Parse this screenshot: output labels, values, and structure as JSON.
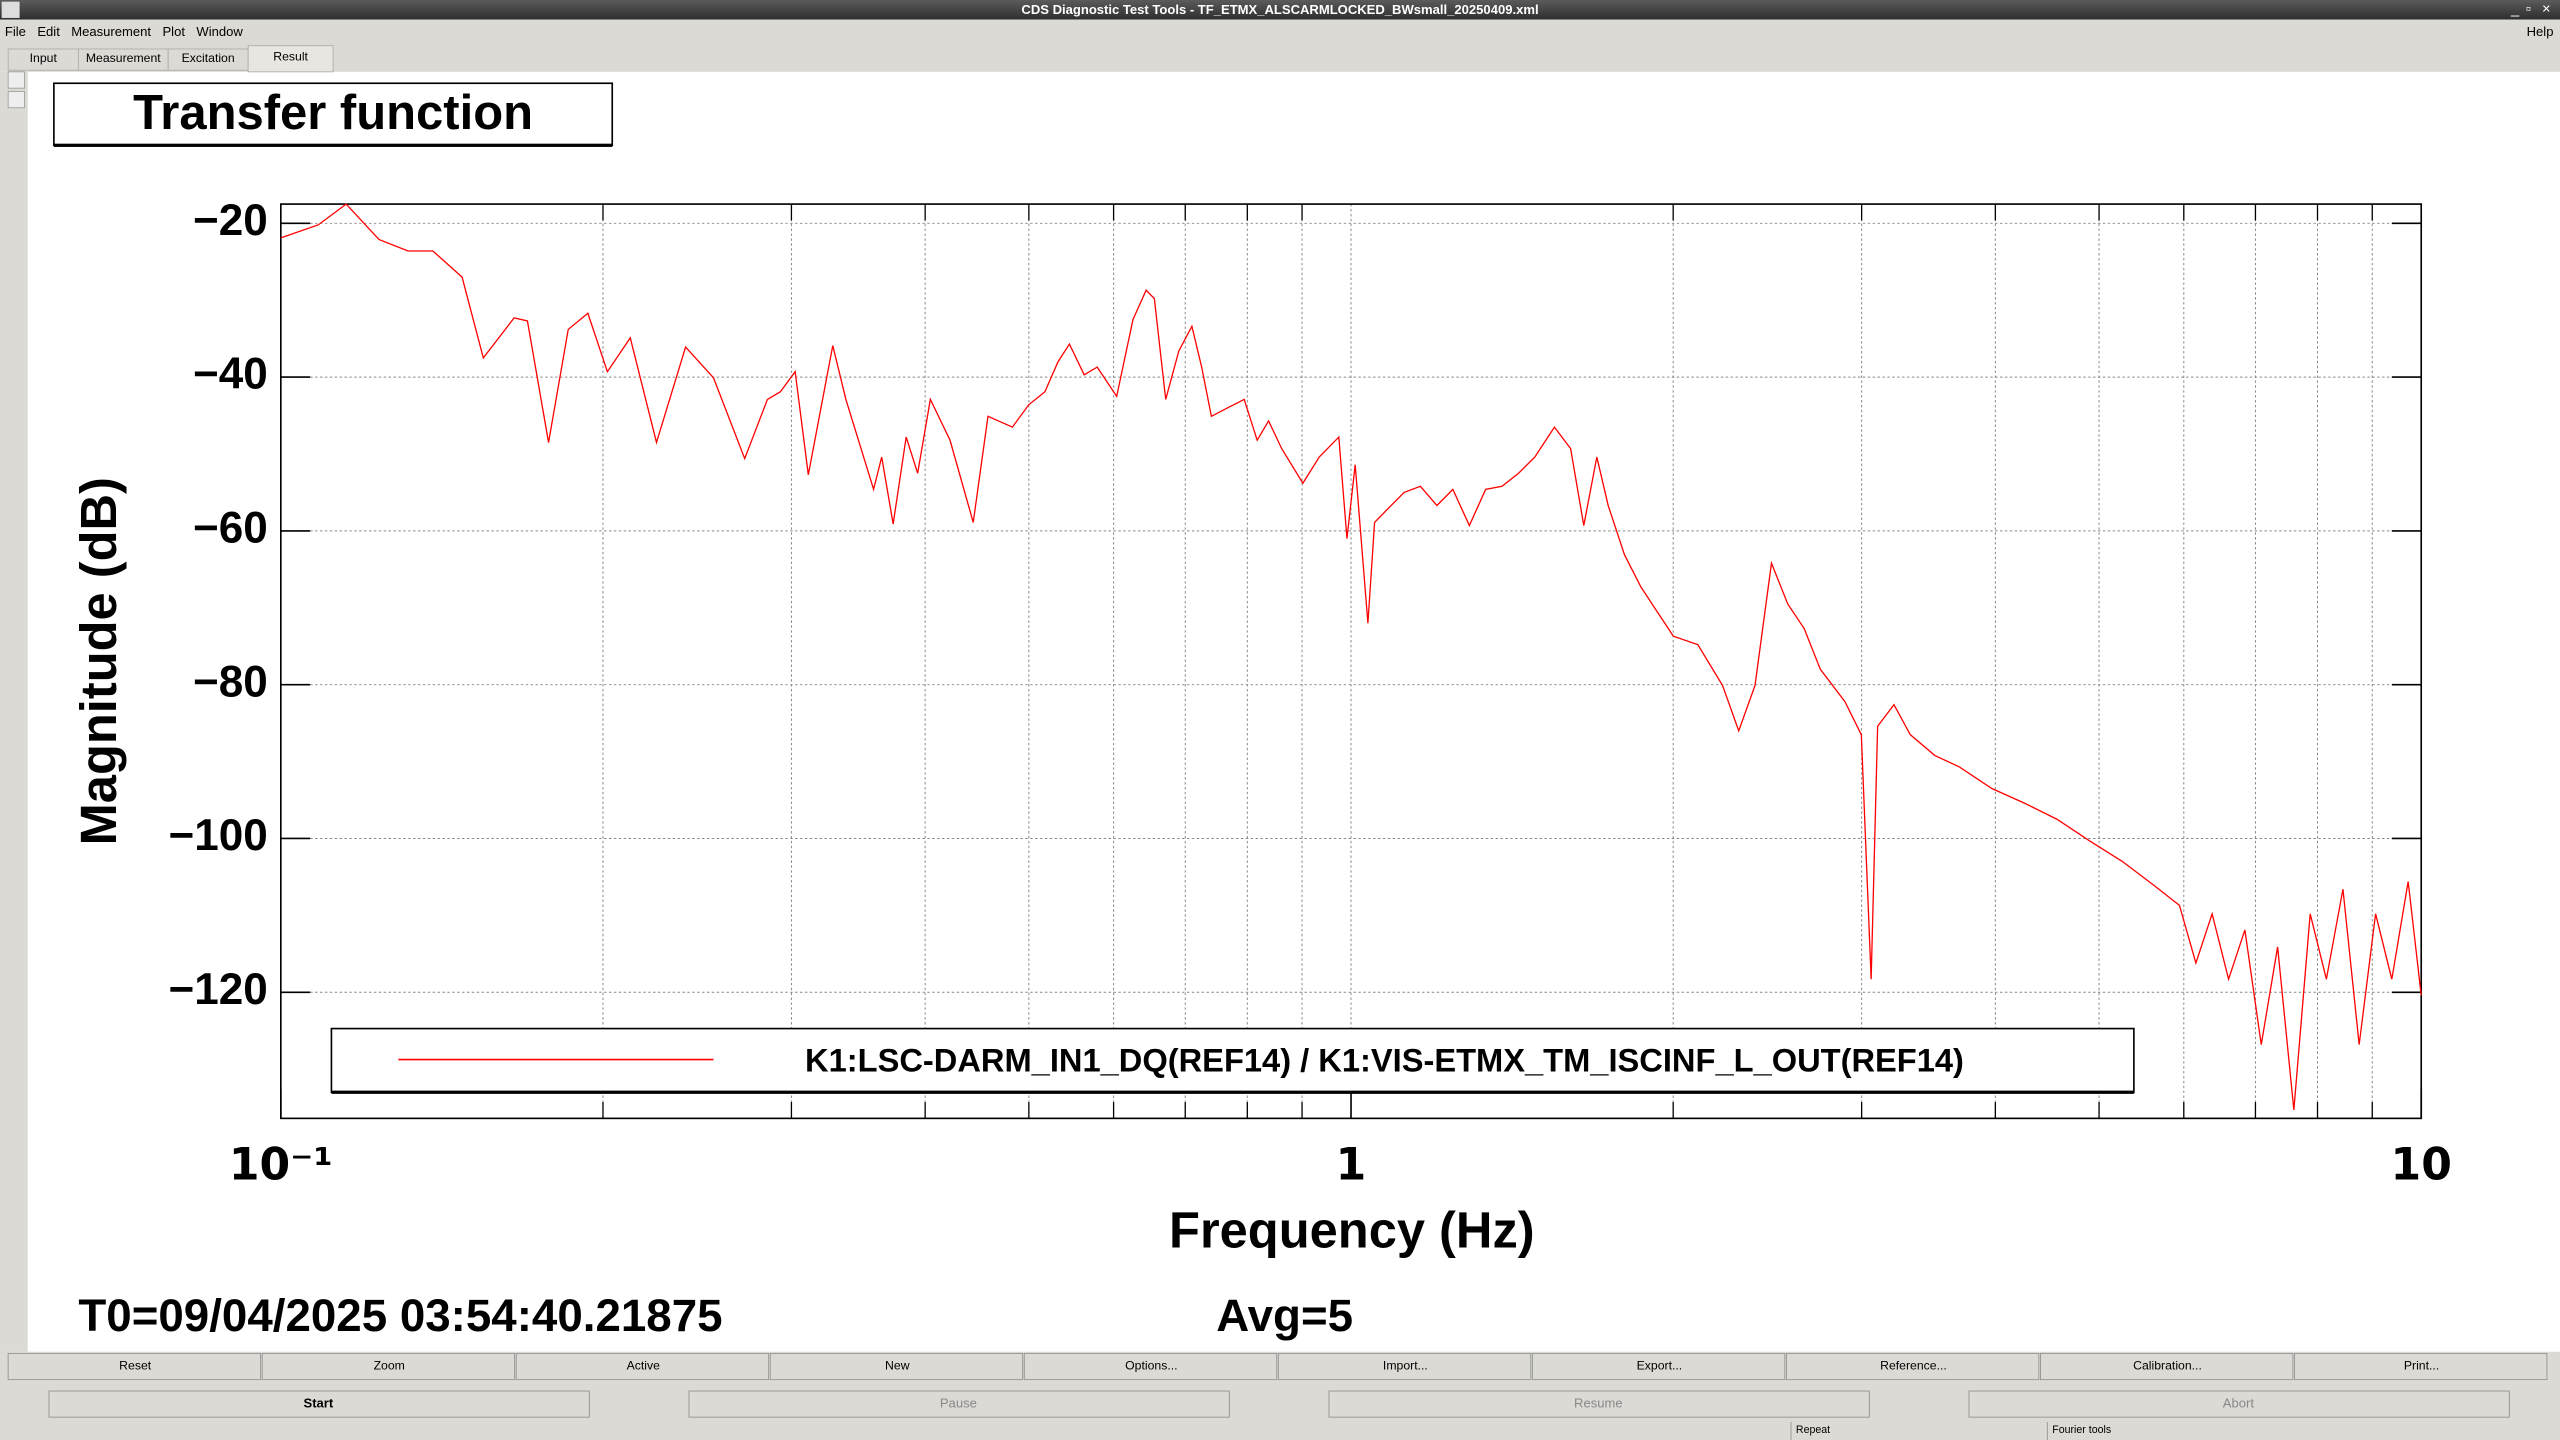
{
  "window": {
    "title": "CDS Diagnostic Test Tools - TF_ETMX_ALSCARMLOCKED_BWsmall_20250409.xml",
    "menu": [
      "File",
      "Edit",
      "Measurement",
      "Plot",
      "Window"
    ],
    "help": "Help",
    "tabs": [
      "Input",
      "Measurement",
      "Excitation",
      "Result"
    ]
  },
  "chart_data": {
    "type": "line",
    "title": "Transfer function",
    "x_label": "Frequency (Hz)",
    "y_label": "Magnitude (dB)",
    "log_x": true,
    "grid": true,
    "xlim": [
      0.1,
      10
    ],
    "xticks": [
      {
        "value": 0.1,
        "label": "10⁻¹"
      },
      1,
      10
    ],
    "xgrid": [
      0.2,
      0.3,
      0.4,
      0.5,
      0.6,
      0.7,
      0.8,
      0.9,
      2,
      3,
      4,
      5,
      6,
      7,
      8,
      9
    ],
    "ylim": [
      -136.4,
      -17.5
    ],
    "yticks": [
      {
        "value": -20,
        "label": "−20"
      },
      {
        "value": -40,
        "label": "−40"
      },
      {
        "value": -60,
        "label": "−60"
      },
      {
        "value": -80,
        "label": "−80"
      },
      {
        "value": -100,
        "label": "−100"
      },
      {
        "value": -120,
        "label": "−120"
      }
    ],
    "x": [
      0.1,
      0.1084,
      0.1151,
      0.1235,
      0.1315,
      0.1387,
      0.1477,
      0.1546,
      0.1652,
      0.17,
      0.1779,
      0.1856,
      0.1936,
      0.2019,
      0.2121,
      0.2244,
      0.2389,
      0.2537,
      0.2713,
      0.2849,
      0.293,
      0.3024,
      0.3111,
      0.3279,
      0.3373,
      0.358,
      0.3643,
      0.3734,
      0.384,
      0.3936,
      0.4045,
      0.422,
      0.4436,
      0.4579,
      0.4826,
      0.4999,
      0.5176,
      0.5324,
      0.5456,
      0.5632,
      0.5792,
      0.604,
      0.6256,
      0.6435,
      0.655,
      0.6712,
      0.6904,
      0.7101,
      0.7252,
      0.7405,
      0.767,
      0.7946,
      0.8172,
      0.8375,
      0.8614,
      0.9016,
      0.9339,
      0.9741,
      0.9913,
      1.009,
      1.037,
      1.052,
      1.09,
      1.121,
      1.161,
      1.203,
      1.245,
      1.29,
      1.336,
      1.384,
      1.434,
      1.485,
      1.549,
      1.604,
      1.65,
      1.697,
      1.739,
      1.801,
      1.866,
      1.932,
      2.001,
      2.109,
      2.224,
      2.303,
      2.385,
      2.471,
      2.559,
      2.651,
      2.745,
      2.894,
      2.998,
      3.062,
      3.105,
      3.216,
      3.331,
      3.511,
      3.702,
      3.97,
      4.258,
      4.567,
      4.898,
      5.258,
      5.639,
      5.944,
      6.158,
      6.377,
      6.607,
      6.843,
      7.088,
      7.342,
      7.603,
      7.875,
      8.154,
      8.45,
      8.75,
      9.065,
      9.387,
      9.723,
      10
    ],
    "series": [
      {
        "name": "K1:LSC-DARM_IN1_DQ(REF14) / K1:VIS-ETMX_TM_ISCINF_L_OUT(REF14)",
        "color": "#ff0000",
        "values": [
          -21.9,
          -20.2,
          -17.5,
          -22.1,
          -23.6,
          -23.6,
          -27.0,
          -37.5,
          -32.3,
          -32.7,
          -48.5,
          -33.8,
          -31.7,
          -39.3,
          -34.9,
          -48.5,
          -36.1,
          -40.1,
          -50.6,
          -42.9,
          -41.9,
          -39.3,
          -52.7,
          -35.9,
          -42.9,
          -54.6,
          -50.4,
          -59.1,
          -47.8,
          -52.5,
          -42.9,
          -48.2,
          -58.9,
          -45.1,
          -46.5,
          -43.6,
          -41.9,
          -38.0,
          -35.7,
          -39.7,
          -38.7,
          -42.5,
          -32.5,
          -28.7,
          -29.8,
          -42.9,
          -36.6,
          -33.4,
          -38.7,
          -45.1,
          -44.0,
          -42.9,
          -48.2,
          -45.7,
          -49.3,
          -53.8,
          -50.4,
          -47.8,
          -61.0,
          -51.4,
          -72.0,
          -58.9,
          -56.7,
          -55.0,
          -54.2,
          -56.7,
          -54.6,
          -59.3,
          -54.6,
          -54.2,
          -52.5,
          -50.4,
          -46.5,
          -49.3,
          -59.3,
          -50.4,
          -56.7,
          -63.1,
          -67.3,
          -70.5,
          -73.7,
          -74.8,
          -80.1,
          -86.0,
          -80.1,
          -64.2,
          -69.5,
          -72.7,
          -78.0,
          -82.2,
          -86.5,
          -118.3,
          -85.4,
          -82.6,
          -86.5,
          -89.2,
          -90.7,
          -93.5,
          -95.4,
          -97.5,
          -100.3,
          -103.0,
          -106.2,
          -108.7,
          -116.2,
          -109.8,
          -118.3,
          -111.9,
          -126.8,
          -114.1,
          -135.3,
          -109.8,
          -118.3,
          -106.6,
          -126.8,
          -109.8,
          -118.3,
          -105.6,
          -120.4
        ]
      }
    ],
    "footer_time": "T0=09/04/2025 03:54:40.21875",
    "footer_avg": "Avg=5"
  },
  "buttons": [
    "Reset",
    "Zoom",
    "Active",
    "New",
    "Options...",
    "Import...",
    "Export...",
    "Reference...",
    "Calibration...",
    "Print..."
  ],
  "controls": [
    "Start",
    "Pause",
    "Resume",
    "Abort"
  ],
  "status": [
    "Repeat",
    "Fourier tools"
  ]
}
